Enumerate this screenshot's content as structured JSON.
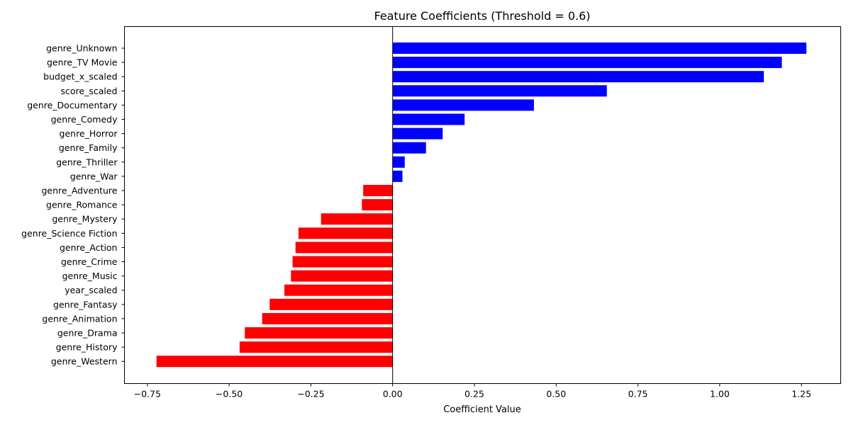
{
  "chart_data": {
    "type": "bar",
    "orientation": "horizontal",
    "title": "Feature Coefficients (Threshold = 0.6)",
    "xlabel": "Coefficient Value",
    "ylabel": "",
    "xlim": [
      -0.82,
      1.37
    ],
    "xticks": [
      -0.75,
      -0.5,
      -0.25,
      0.0,
      0.25,
      0.5,
      0.75,
      1.0,
      1.25
    ],
    "xtick_labels": [
      "−0.75",
      "−0.50",
      "−0.25",
      "0.00",
      "0.25",
      "0.50",
      "0.75",
      "1.00",
      "1.25"
    ],
    "grid": false,
    "positive_color": "#0000ff",
    "negative_color": "#ff0000",
    "categories": [
      "genre_Unknown",
      "genre_TV Movie",
      "budget_x_scaled",
      "score_scaled",
      "genre_Documentary",
      "genre_Comedy",
      "genre_Horror",
      "genre_Family",
      "genre_Thriller",
      "genre_War",
      "genre_Adventure",
      "genre_Romance",
      "genre_Mystery",
      "genre_Science Fiction",
      "genre_Action",
      "genre_Crime",
      "genre_Music",
      "year_scaled",
      "genre_Fantasy",
      "genre_Animation",
      "genre_Drama",
      "genre_History",
      "genre_Western"
    ],
    "values": [
      1.265,
      1.19,
      1.135,
      0.655,
      0.432,
      0.22,
      0.153,
      0.102,
      0.037,
      0.03,
      -0.09,
      -0.094,
      -0.219,
      -0.288,
      -0.297,
      -0.306,
      -0.311,
      -0.331,
      -0.376,
      -0.399,
      -0.452,
      -0.468,
      -0.722
    ]
  }
}
